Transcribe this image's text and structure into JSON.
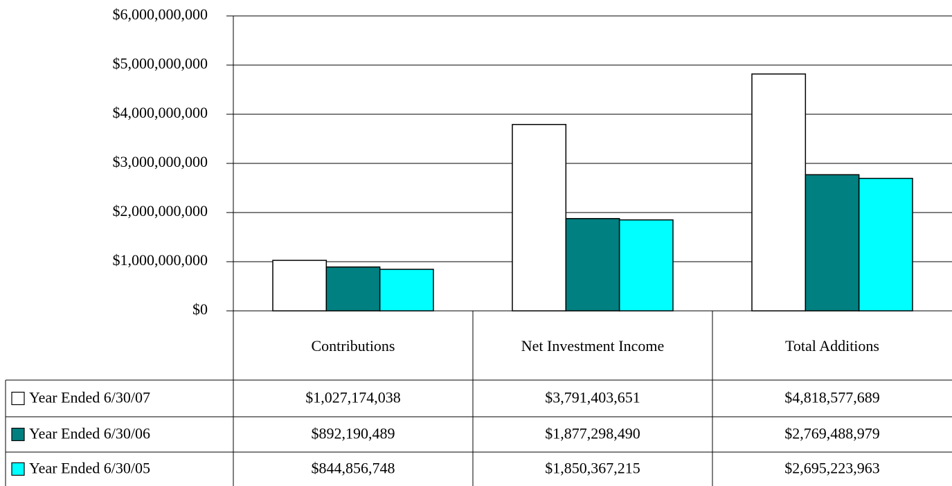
{
  "chart_data": {
    "type": "bar",
    "categories": [
      "Contributions",
      "Net Investment Income",
      "Total Additions"
    ],
    "series": [
      {
        "name": "Year Ended 6/30/07",
        "color": "#ffffff",
        "values": [
          1027174038,
          3791403651,
          4818577689
        ],
        "value_labels": [
          "$1,027,174,038",
          "$3,791,403,651",
          "$4,818,577,689"
        ]
      },
      {
        "name": "Year Ended 6/30/06",
        "color": "#008080",
        "values": [
          892190489,
          1877298490,
          2769488979
        ],
        "value_labels": [
          "$892,190,489",
          "$1,877,298,490",
          "$2,769,488,979"
        ]
      },
      {
        "name": "Year Ended 6/30/05",
        "color": "#00ffff",
        "values": [
          844856748,
          1850367215,
          2695223963
        ],
        "value_labels": [
          "$844,856,748",
          "$1,850,367,215",
          "$2,695,223,963"
        ]
      }
    ],
    "ylim": [
      0,
      6000000000
    ],
    "yticks": [
      {
        "value": 0,
        "label": "$0"
      },
      {
        "value": 1000000000,
        "label": "$1,000,000,000"
      },
      {
        "value": 2000000000,
        "label": "$2,000,000,000"
      },
      {
        "value": 3000000000,
        "label": "$3,000,000,000"
      },
      {
        "value": 4000000000,
        "label": "$4,000,000,000"
      },
      {
        "value": 5000000000,
        "label": "$5,000,000,000"
      },
      {
        "value": 6000000000,
        "label": "$6,000,000,000"
      }
    ],
    "grid": true
  }
}
